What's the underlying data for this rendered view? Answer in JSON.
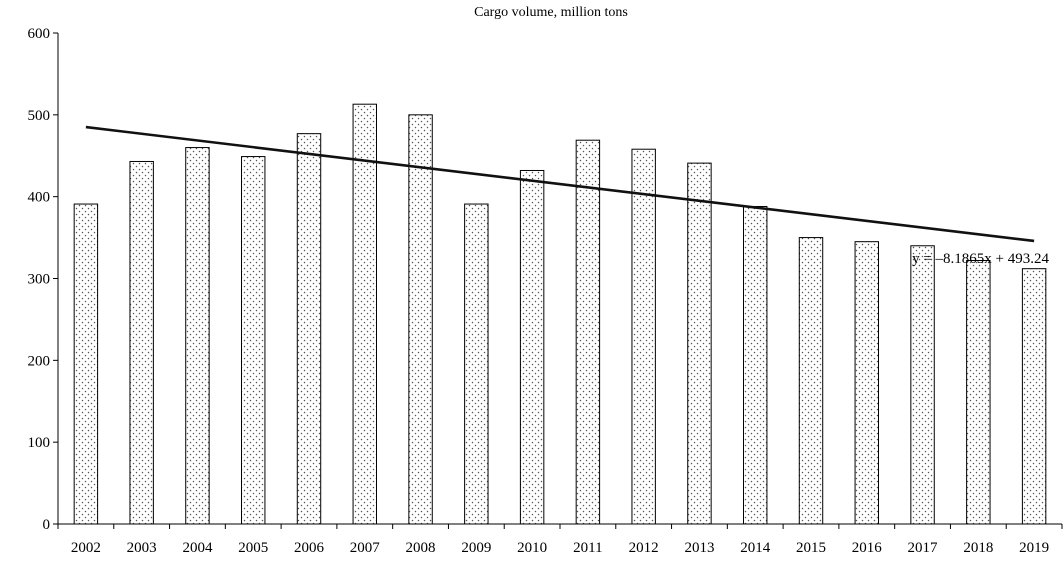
{
  "chart_data": {
    "type": "bar",
    "title": "Cargo volume, million tons",
    "xlabel": "",
    "ylabel": "",
    "ylim": [
      0,
      600
    ],
    "yticks": [
      0,
      100,
      200,
      300,
      400,
      500,
      600
    ],
    "grid": false,
    "legend": "none",
    "bar_fill": "dotted",
    "categories": [
      "2002",
      "2003",
      "2004",
      "2005",
      "2006",
      "2007",
      "2008",
      "2009",
      "2010",
      "2011",
      "2012",
      "2013",
      "2014",
      "2015",
      "2016",
      "2017",
      "2018",
      "2019"
    ],
    "values": [
      391,
      443,
      460,
      449,
      477,
      513,
      500,
      391,
      432,
      469,
      458,
      441,
      388,
      350,
      345,
      340,
      322,
      312
    ],
    "trendline": {
      "type": "linear",
      "slope": -8.1865,
      "intercept": 493.24,
      "label": "y = –8.1865x + 493.24"
    }
  }
}
